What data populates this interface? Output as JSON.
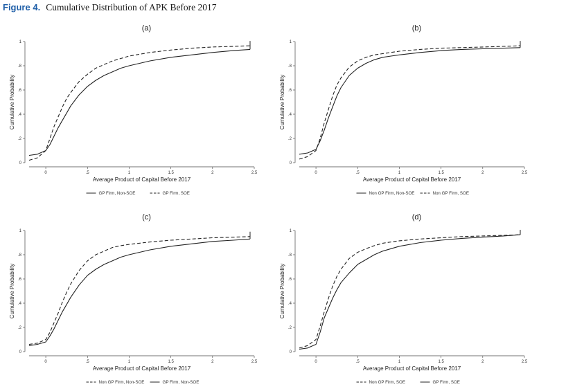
{
  "figure": {
    "label": "Figure 4.",
    "caption": "Cumulative Distribution of APK Before 2017"
  },
  "colors": {
    "line": "#222222",
    "figure_label": "#1f5fa8"
  },
  "chart_data": [
    {
      "type": "line",
      "panel": "(a)",
      "xlabel": "Average Product of Capital Before 2017",
      "ylabel": "Cumulative Probability",
      "xlim": [
        -0.2,
        2.5
      ],
      "ylim": [
        0,
        1
      ],
      "xticks": [
        "0",
        ".5",
        "1",
        "1.5",
        "2",
        "2.5"
      ],
      "yticks": [
        "0",
        ".2",
        ".4",
        ".6",
        ".8",
        "1"
      ],
      "x": [
        -0.2,
        -0.1,
        0,
        0.05,
        0.1,
        0.15,
        0.2,
        0.25,
        0.3,
        0.4,
        0.5,
        0.6,
        0.7,
        0.8,
        0.9,
        1.0,
        1.25,
        1.5,
        1.75,
        2.0,
        2.25,
        2.45
      ],
      "series": [
        {
          "name": "GP Firm, Non-SOE",
          "dash": "solid",
          "values": [
            0.06,
            0.07,
            0.1,
            0.15,
            0.22,
            0.29,
            0.35,
            0.41,
            0.47,
            0.56,
            0.63,
            0.68,
            0.72,
            0.75,
            0.78,
            0.8,
            0.84,
            0.87,
            0.89,
            0.91,
            0.925,
            0.935
          ]
        },
        {
          "name": "GP Firm, SOE",
          "dash": "dashed",
          "values": [
            0.02,
            0.04,
            0.1,
            0.2,
            0.3,
            0.38,
            0.46,
            0.53,
            0.58,
            0.67,
            0.73,
            0.78,
            0.81,
            0.84,
            0.86,
            0.88,
            0.91,
            0.93,
            0.945,
            0.955,
            0.96,
            0.965
          ]
        }
      ],
      "legend": "bottom"
    },
    {
      "type": "line",
      "panel": "(b)",
      "xlabel": "Average Product of Capital Before 2017",
      "ylabel": "Cumulative Probability",
      "xlim": [
        -0.2,
        2.5
      ],
      "ylim": [
        0,
        1
      ],
      "xticks": [
        "0",
        ".5",
        "1",
        "1.5",
        "2",
        "2.5"
      ],
      "yticks": [
        "0",
        ".2",
        ".4",
        ".6",
        ".8",
        "1"
      ],
      "x": [
        -0.2,
        -0.1,
        0,
        0.05,
        0.1,
        0.15,
        0.2,
        0.25,
        0.3,
        0.4,
        0.5,
        0.6,
        0.7,
        0.8,
        0.9,
        1.0,
        1.25,
        1.5,
        1.75,
        2.0,
        2.25,
        2.45
      ],
      "series": [
        {
          "name": "Non GP Firm, Non-SOE",
          "dash": "solid",
          "values": [
            0.07,
            0.08,
            0.11,
            0.18,
            0.27,
            0.37,
            0.46,
            0.55,
            0.62,
            0.72,
            0.78,
            0.82,
            0.85,
            0.87,
            0.88,
            0.89,
            0.91,
            0.925,
            0.935,
            0.94,
            0.945,
            0.95
          ]
        },
        {
          "name": "Non GP Firm, SOE",
          "dash": "dashed",
          "values": [
            0.03,
            0.05,
            0.1,
            0.2,
            0.33,
            0.44,
            0.55,
            0.64,
            0.7,
            0.79,
            0.84,
            0.87,
            0.89,
            0.9,
            0.91,
            0.92,
            0.935,
            0.945,
            0.95,
            0.955,
            0.96,
            0.965
          ]
        }
      ],
      "legend": "bottom"
    },
    {
      "type": "line",
      "panel": "(c)",
      "xlabel": "Average Product of Capital Before 2017",
      "ylabel": "Cumulative Probability",
      "xlim": [
        -0.2,
        2.5
      ],
      "ylim": [
        0,
        1
      ],
      "xticks": [
        "0",
        ".5",
        "1",
        "1.5",
        "2",
        "2.5"
      ],
      "yticks": [
        "0",
        ".2",
        ".4",
        ".6",
        ".8",
        "1"
      ],
      "x": [
        -0.2,
        -0.1,
        0,
        0.05,
        0.1,
        0.15,
        0.2,
        0.25,
        0.3,
        0.4,
        0.5,
        0.6,
        0.7,
        0.8,
        0.9,
        1.0,
        1.25,
        1.5,
        1.75,
        2.0,
        2.25,
        2.45
      ],
      "series": [
        {
          "name": "Non GP Firm, Non-SOE",
          "dash": "dashed",
          "values": [
            0.06,
            0.07,
            0.1,
            0.16,
            0.24,
            0.32,
            0.41,
            0.49,
            0.56,
            0.67,
            0.75,
            0.8,
            0.83,
            0.86,
            0.875,
            0.885,
            0.905,
            0.92,
            0.93,
            0.94,
            0.945,
            0.95
          ]
        },
        {
          "name": "GP Firm, Non-SOE",
          "dash": "solid",
          "values": [
            0.05,
            0.06,
            0.08,
            0.13,
            0.19,
            0.26,
            0.33,
            0.39,
            0.45,
            0.55,
            0.63,
            0.68,
            0.72,
            0.75,
            0.78,
            0.8,
            0.84,
            0.87,
            0.89,
            0.91,
            0.92,
            0.93
          ]
        }
      ],
      "legend": "bottom"
    },
    {
      "type": "line",
      "panel": "(d)",
      "xlabel": "Average Product of Capital Before 2017",
      "ylabel": "Cumulative Probability",
      "xlim": [
        -0.2,
        2.5
      ],
      "ylim": [
        0,
        1
      ],
      "xticks": [
        "0",
        ".5",
        "1",
        "1.5",
        "2",
        "2.5"
      ],
      "yticks": [
        "0",
        ".2",
        ".4",
        ".6",
        ".8",
        "1"
      ],
      "x": [
        -0.2,
        -0.1,
        0,
        0.05,
        0.1,
        0.15,
        0.2,
        0.25,
        0.3,
        0.4,
        0.5,
        0.6,
        0.7,
        0.8,
        0.9,
        1.0,
        1.25,
        1.5,
        1.75,
        2.0,
        2.25,
        2.45
      ],
      "series": [
        {
          "name": "Non GP Firm, SOE",
          "dash": "dashed",
          "values": [
            0.03,
            0.05,
            0.1,
            0.21,
            0.33,
            0.44,
            0.54,
            0.62,
            0.68,
            0.77,
            0.82,
            0.85,
            0.875,
            0.895,
            0.905,
            0.915,
            0.93,
            0.94,
            0.95,
            0.955,
            0.96,
            0.965
          ]
        },
        {
          "name": "GP Firm, SOE",
          "dash": "solid",
          "values": [
            0.02,
            0.03,
            0.06,
            0.16,
            0.28,
            0.36,
            0.44,
            0.51,
            0.57,
            0.65,
            0.72,
            0.76,
            0.8,
            0.83,
            0.85,
            0.87,
            0.9,
            0.92,
            0.935,
            0.945,
            0.955,
            0.965
          ]
        }
      ],
      "legend": "bottom"
    }
  ]
}
